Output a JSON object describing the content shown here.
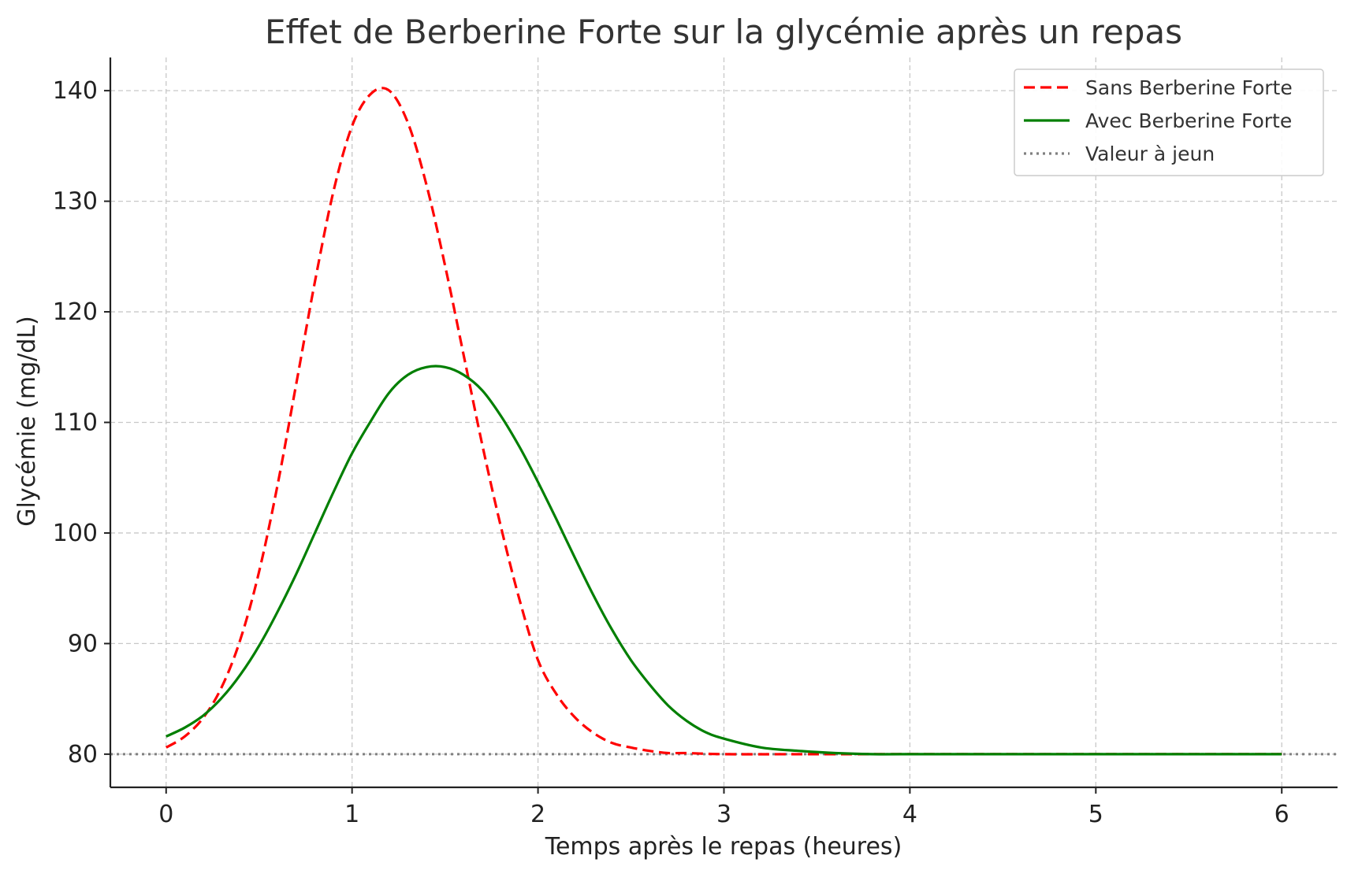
{
  "chart_data": {
    "type": "line",
    "title": "Effet de Berberine Forte sur la glycémie après un repas",
    "xlabel": "Temps après le repas (heures)",
    "ylabel": "Glycémie (mg/dL)",
    "xlim": [
      -0.3,
      6.3
    ],
    "ylim": [
      77,
      143
    ],
    "xticks": [
      0,
      1,
      2,
      3,
      4,
      5,
      6
    ],
    "yticks": [
      80,
      90,
      100,
      110,
      120,
      130,
      140
    ],
    "grid": true,
    "legend_position": "top-right",
    "series": [
      {
        "name": "Sans Berberine Forte",
        "color": "#ff0000",
        "style": "dashed",
        "x": [
          0,
          0.1,
          0.2,
          0.3,
          0.4,
          0.5,
          0.6,
          0.7,
          0.8,
          0.9,
          1.0,
          1.1,
          1.2,
          1.3,
          1.4,
          1.5,
          1.6,
          1.7,
          1.8,
          1.9,
          2.0,
          2.1,
          2.2,
          2.3,
          2.4,
          2.5,
          2.6,
          2.7,
          2.8,
          3.0,
          3.5,
          4.0,
          5.0,
          6.0
        ],
        "values": [
          80.6,
          81.6,
          83.3,
          86.1,
          90.4,
          96.5,
          104.4,
          113.5,
          122.7,
          130.9,
          136.8,
          139.7,
          140.0,
          137.1,
          131.5,
          124.2,
          116.1,
          108.0,
          100.6,
          94.0,
          88.5,
          85.4,
          83.3,
          81.9,
          81.0,
          80.6,
          80.3,
          80.1,
          80.1,
          80.0,
          80.0,
          80.0,
          80.0,
          80.0
        ]
      },
      {
        "name": "Avec Berberine Forte",
        "color": "#007f00",
        "style": "solid",
        "x": [
          0,
          0.1,
          0.2,
          0.3,
          0.4,
          0.5,
          0.6,
          0.7,
          0.8,
          0.9,
          1.0,
          1.1,
          1.2,
          1.3,
          1.4,
          1.5,
          1.6,
          1.7,
          1.8,
          1.9,
          2.0,
          2.1,
          2.2,
          2.3,
          2.4,
          2.5,
          2.6,
          2.7,
          2.8,
          2.9,
          3.0,
          3.2,
          3.4,
          3.6,
          3.8,
          4.0,
          5.0,
          6.0
        ],
        "values": [
          81.6,
          82.4,
          83.5,
          85.1,
          87.2,
          89.8,
          92.9,
          96.3,
          100.0,
          103.7,
          107.2,
          110.1,
          112.7,
          114.3,
          115.0,
          115.0,
          114.3,
          112.9,
          110.6,
          107.8,
          104.6,
          101.2,
          97.7,
          94.3,
          91.2,
          88.5,
          86.3,
          84.4,
          83.0,
          82.0,
          81.4,
          80.6,
          80.3,
          80.1,
          80.0,
          80.0,
          80.0,
          80.0
        ]
      },
      {
        "name": "Valeur à jeun",
        "color": "#808080",
        "style": "dotted",
        "x": [
          -0.3,
          6.3
        ],
        "values": [
          80,
          80
        ]
      }
    ]
  }
}
